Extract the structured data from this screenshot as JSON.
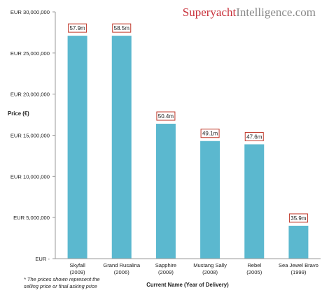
{
  "brand": {
    "part1": "Superyacht",
    "part2": "Intelligence.com"
  },
  "chart_data": {
    "type": "bar",
    "title": "",
    "ylabel": "Price (€)",
    "xlabel": "Current Name (Year of Delivery)",
    "ylim": [
      0,
      30000000
    ],
    "yticks": [
      0,
      5000000,
      10000000,
      15000000,
      20000000,
      25000000,
      30000000
    ],
    "ytick_labels": [
      "EUR -",
      "EUR 5,000,000",
      "EUR 10,000,000",
      "EUR 15,000,000",
      "EUR 20,000,000",
      "EUR 25,000,000",
      "EUR 30,000,000"
    ],
    "categories": [
      [
        "Skyfall",
        "(2009)"
      ],
      [
        "Grand Rusalina",
        "(2006)"
      ],
      [
        "Sapphire",
        "(2009)"
      ],
      [
        "Mustang Sally",
        "(2008)"
      ],
      [
        "Rebel",
        "(2005)"
      ],
      [
        "Sea Jewel Bravo",
        "(1999)"
      ]
    ],
    "values": [
      27100000,
      27100000,
      16400000,
      14300000,
      13900000,
      4000000
    ],
    "data_labels": [
      "57.9m",
      "58.5m",
      "50.4m",
      "49.1m",
      "47.6m",
      "35.9m"
    ],
    "bar_color": "#5bb8cf",
    "label_border_color": "#c0392b",
    "grid": false
  },
  "footnote": [
    "* The prices shown represent the",
    "selling price or final asking price"
  ]
}
